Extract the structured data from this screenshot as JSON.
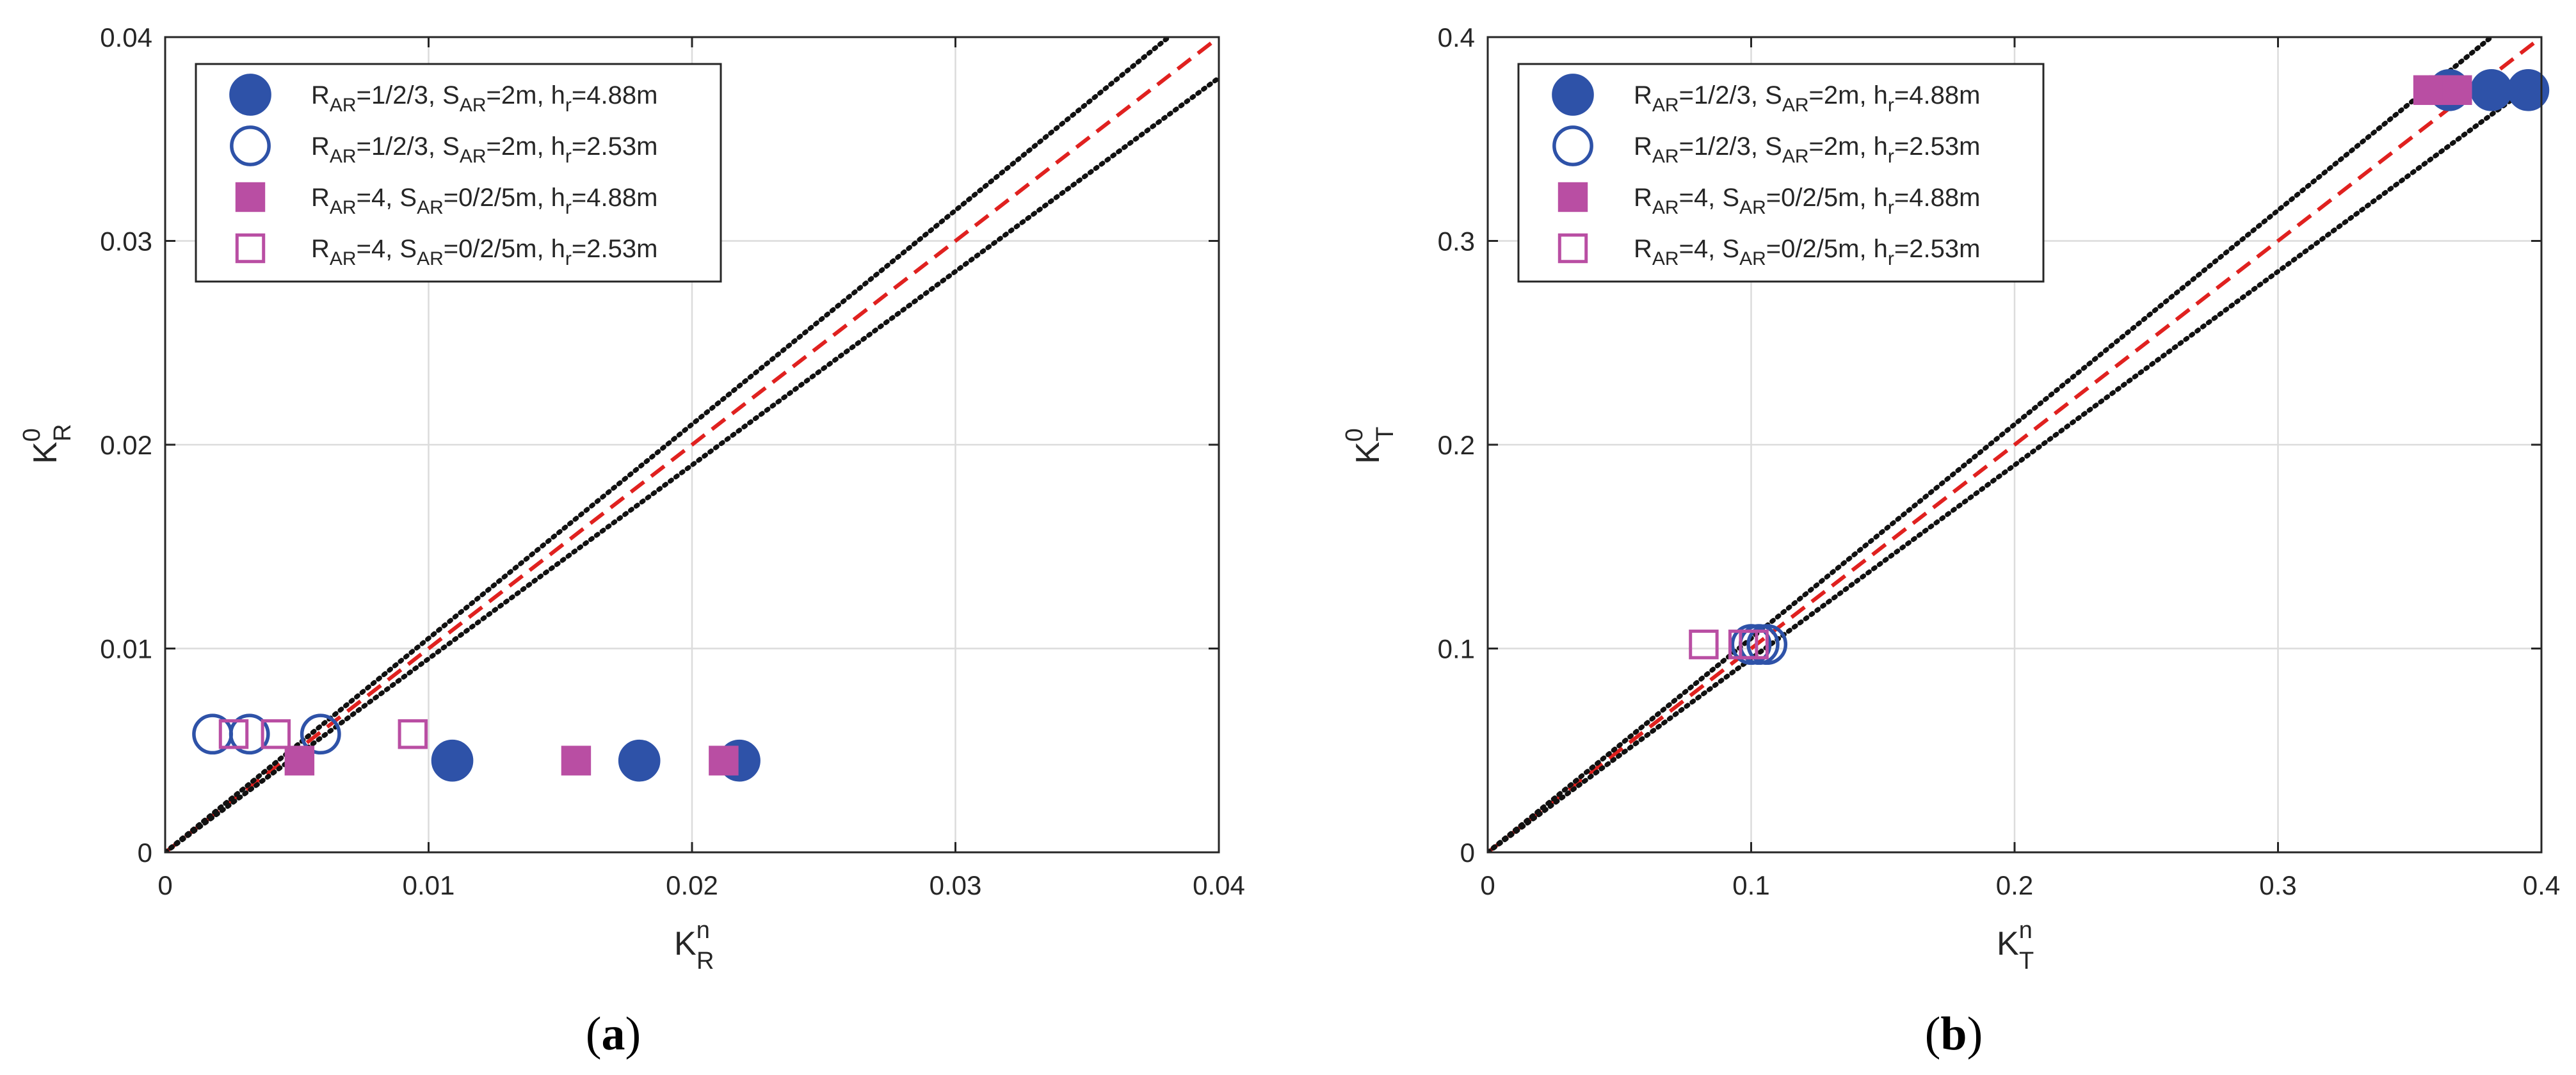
{
  "colors": {
    "blue": "#2e52a8",
    "magenta": "#b94ea3",
    "ref_line": "#e0211f",
    "bound_line": "#111111",
    "grid": "#dcdcdc",
    "axis": "#262626"
  },
  "legend_items": [
    {
      "marker": "filled-circle",
      "color": "blue",
      "R_sub": "AR",
      "R_val": "=1/2/3, ",
      "S_sub": "AR",
      "S_val": "=2m, ",
      "h_sub": "r",
      "h_val": "=4.88m"
    },
    {
      "marker": "open-circle",
      "color": "blue",
      "R_sub": "AR",
      "R_val": "=1/2/3, ",
      "S_sub": "AR",
      "S_val": "=2m, ",
      "h_sub": "r",
      "h_val": "=2.53m"
    },
    {
      "marker": "filled-square",
      "color": "magenta",
      "R_sub": "AR",
      "R_val": "=4, ",
      "S_sub": "AR",
      "S_val": "=0/2/5m, ",
      "h_sub": "r",
      "h_val": "=4.88m"
    },
    {
      "marker": "open-square",
      "color": "magenta",
      "R_sub": "AR",
      "R_val": "=4, ",
      "S_sub": "AR",
      "S_val": "=0/2/5m, ",
      "h_sub": "r",
      "h_val": "=2.53m"
    }
  ],
  "chart_data": [
    {
      "type": "scatter",
      "caption": "a",
      "xlabel": {
        "base": "K",
        "sub": "R",
        "sup": "n"
      },
      "ylabel": {
        "base": "K",
        "sub": "R",
        "sup": "0"
      },
      "xlim": [
        0,
        0.04
      ],
      "ylim": [
        0,
        0.04
      ],
      "xticks": [
        "0",
        "0.01",
        "0.02",
        "0.03",
        "0.04"
      ],
      "yticks": [
        "0",
        "0.01",
        "0.02",
        "0.03",
        "0.04"
      ],
      "grid": true,
      "legend_position": "top-left",
      "reference_lines": [
        {
          "style": "red-dashed",
          "slope": 1.0
        },
        {
          "style": "black-dotted",
          "slope": 1.05
        },
        {
          "style": "black-dotted",
          "slope": 0.95
        }
      ],
      "series": [
        {
          "marker": "filled-circle",
          "color": "blue",
          "points": [
            [
              0.0109,
              0.0045
            ],
            [
              0.018,
              0.0045
            ],
            [
              0.0218,
              0.0045
            ]
          ]
        },
        {
          "marker": "open-circle",
          "color": "blue",
          "points": [
            [
              0.0018,
              0.0058
            ],
            [
              0.0032,
              0.0058
            ],
            [
              0.0059,
              0.0058
            ]
          ]
        },
        {
          "marker": "filled-square",
          "color": "magenta",
          "points": [
            [
              0.0051,
              0.0045
            ],
            [
              0.0156,
              0.0045
            ],
            [
              0.0212,
              0.0045
            ]
          ]
        },
        {
          "marker": "open-square",
          "color": "magenta",
          "points": [
            [
              0.0026,
              0.0058
            ],
            [
              0.0042,
              0.0058
            ],
            [
              0.0094,
              0.0058
            ]
          ]
        }
      ]
    },
    {
      "type": "scatter",
      "caption": "b",
      "xlabel": {
        "base": "K",
        "sub": "T",
        "sup": "n"
      },
      "ylabel": {
        "base": "K",
        "sub": "T",
        "sup": "0"
      },
      "xlim": [
        0,
        0.4
      ],
      "ylim": [
        0,
        0.4
      ],
      "xticks": [
        "0",
        "0.1",
        "0.2",
        "0.3",
        "0.4"
      ],
      "yticks": [
        "0",
        "0.1",
        "0.2",
        "0.3",
        "0.4"
      ],
      "grid": true,
      "legend_position": "top-left",
      "reference_lines": [
        {
          "style": "red-dashed",
          "slope": 1.0
        },
        {
          "style": "black-dotted",
          "slope": 1.05
        },
        {
          "style": "black-dotted",
          "slope": 0.95
        }
      ],
      "series": [
        {
          "marker": "filled-circle",
          "color": "blue",
          "points": [
            [
              0.365,
              0.374
            ],
            [
              0.381,
              0.374
            ],
            [
              0.395,
              0.374
            ]
          ]
        },
        {
          "marker": "open-circle",
          "color": "blue",
          "points": [
            [
              0.1,
              0.102
            ],
            [
              0.103,
              0.102
            ],
            [
              0.106,
              0.102
            ]
          ]
        },
        {
          "marker": "filled-square",
          "color": "magenta",
          "points": [
            [
              0.357,
              0.374
            ],
            [
              0.363,
              0.374
            ],
            [
              0.368,
              0.374
            ]
          ]
        },
        {
          "marker": "open-square",
          "color": "magenta",
          "points": [
            [
              0.082,
              0.102
            ],
            [
              0.097,
              0.102
            ],
            [
              0.101,
              0.102
            ]
          ]
        }
      ]
    }
  ]
}
